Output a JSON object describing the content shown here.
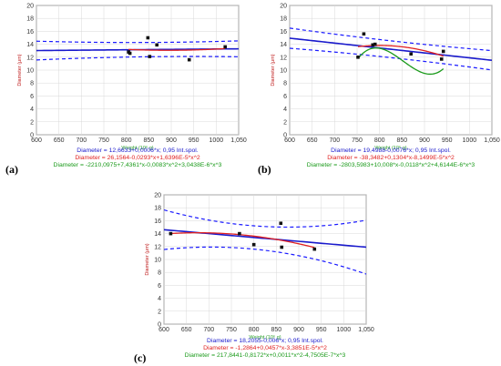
{
  "colors": {
    "ci": "#1a1aff",
    "linear": "#1a1acc",
    "quadratic": "#e02020",
    "cubic": "#1a9a1a",
    "points": "#111111",
    "xlabel": "#2aa02a",
    "ylabel": "#c02020"
  },
  "chart_data": [
    {
      "panel_label": "(a)",
      "type": "scatter",
      "xlabel": "Weight (10⁶ g)",
      "ylabel": "Diameter (μm)",
      "xlim": [
        600,
        1050
      ],
      "ylim": [
        0,
        20
      ],
      "xticks": [
        "600",
        "650",
        "700",
        "750",
        "800",
        "850",
        "900",
        "950",
        "1000",
        "1,050"
      ],
      "yticks": [
        "0",
        "2",
        "4",
        "6",
        "8",
        "10",
        "12",
        "14",
        "16",
        "18",
        "20"
      ],
      "points": [
        [
          805,
          12.8
        ],
        [
          808,
          12.6
        ],
        [
          848,
          15.0
        ],
        [
          852,
          12.1
        ],
        [
          868,
          13.9
        ],
        [
          940,
          11.6
        ],
        [
          1020,
          13.6
        ]
      ],
      "equations": [
        {
          "text": "Diameter = 12,6633+0,0006*x; 0,95 Int.spol.",
          "color": "linear"
        },
        {
          "text": "Diameter = 26,1564-0,0293*x+1,6396E-5*x^2",
          "color": "quadratic"
        },
        {
          "text": "Diameter = -2210,0975+7,4361*x-0,0083*x^2+3,0438E-6*x^3",
          "color": "cubic"
        }
      ],
      "series": [
        {
          "kind": "linear",
          "coef": [
            12.6633,
            0.0006
          ],
          "xrange": [
            600,
            1050
          ],
          "dashed": false
        },
        {
          "kind": "ci_upper",
          "coef": [
            12.6633,
            0.0006
          ],
          "center": 880,
          "half_width_min": 1.1,
          "curv": 4.5e-06,
          "xrange": [
            600,
            1050
          ],
          "dashed": true
        },
        {
          "kind": "ci_lower",
          "coef": [
            12.6633,
            0.0006
          ],
          "center": 880,
          "half_width_min": 1.1,
          "curv": 4.5e-06,
          "xrange": [
            600,
            1050
          ],
          "dashed": true
        },
        {
          "kind": "quadratic",
          "coef": [
            26.1564,
            -0.0293,
            1.6396e-05
          ],
          "xrange": [
            805,
            1020
          ],
          "dashed": false
        },
        {
          "kind": "cubic",
          "coef": [
            -2210.0975,
            7.4361,
            -0.0083,
            3.0438e-06
          ],
          "xrange": [
            805,
            1020
          ],
          "dashed": false
        }
      ]
    },
    {
      "panel_label": "(b)",
      "type": "scatter",
      "xlabel": "Weight (10⁶ g)",
      "ylabel": "Diameter (μm)",
      "xlim": [
        600,
        1050
      ],
      "ylim": [
        0,
        20
      ],
      "xticks": [
        "600",
        "650",
        "700",
        "750",
        "800",
        "850",
        "900",
        "950",
        "1000",
        "1,050"
      ],
      "yticks": [
        "0",
        "2",
        "4",
        "6",
        "8",
        "10",
        "12",
        "14",
        "16",
        "18",
        "20"
      ],
      "points": [
        [
          752,
          12.0
        ],
        [
          765,
          15.6
        ],
        [
          785,
          13.9
        ],
        [
          790,
          14.0
        ],
        [
          870,
          12.5
        ],
        [
          938,
          11.7
        ],
        [
          942,
          12.9
        ]
      ],
      "equations": [
        {
          "text": "Diameter = 19,4988-0,0076*x; 0,95 Int.spol.",
          "color": "linear"
        },
        {
          "text": "Diameter = -38,3482+0,1304*x-8,1499E-5*x^2",
          "color": "quadratic"
        },
        {
          "text": "Diameter = -2803,5983+10,008*x-0,0118*x^2+4,6144E-6*x^3",
          "color": "cubic"
        }
      ],
      "series": [
        {
          "kind": "linear",
          "coef": [
            19.4988,
            -0.0076
          ],
          "xrange": [
            600,
            1050
          ],
          "dashed": false
        },
        {
          "kind": "ci_upper",
          "coef": [
            19.4988,
            -0.0076
          ],
          "center": 840,
          "half_width_min": 1.3,
          "curv": 4.5e-06,
          "xrange": [
            600,
            1050
          ],
          "dashed": true
        },
        {
          "kind": "ci_lower",
          "coef": [
            19.4988,
            -0.0076
          ],
          "center": 840,
          "half_width_min": 1.3,
          "curv": 4.5e-06,
          "xrange": [
            600,
            1050
          ],
          "dashed": true
        },
        {
          "kind": "quadratic",
          "coef": [
            -38.3482,
            0.1304,
            -8.1499e-05
          ],
          "xrange": [
            752,
            942
          ],
          "dashed": false
        },
        {
          "kind": "cubic",
          "coef": [
            -2803.5983,
            10.008,
            -0.0118,
            4.6144e-06
          ],
          "xrange": [
            752,
            942
          ],
          "dashed": false
        }
      ]
    },
    {
      "panel_label": "(c)",
      "type": "scatter",
      "xlabel": "Weight (10⁶ g)",
      "ylabel": "Diameter (μm)",
      "xlim": [
        600,
        1050
      ],
      "ylim": [
        0,
        20
      ],
      "xticks": [
        "600",
        "650",
        "700",
        "750",
        "800",
        "850",
        "900",
        "950",
        "1000",
        "1,050"
      ],
      "yticks": [
        "0",
        "2",
        "4",
        "6",
        "8",
        "10",
        "12",
        "14",
        "16",
        "18",
        "20"
      ],
      "points": [
        [
          615,
          14.0
        ],
        [
          768,
          14.0
        ],
        [
          800,
          12.3
        ],
        [
          860,
          15.6
        ],
        [
          862,
          11.9
        ],
        [
          935,
          11.6
        ]
      ],
      "equations": [
        {
          "text": "Diameter = 18,2055-0,006*x; 0,95 Int.spol.",
          "color": "linear"
        },
        {
          "text": "Diameter = -1,2864+0,0457*x-3,3851E-5*x^2",
          "color": "quadratic"
        },
        {
          "text": "Diameter = 217,8441-0,8172*x+0,0011*x^2-4,7505E-7*x^3",
          "color": "cubic"
        }
      ],
      "series": [
        {
          "kind": "linear",
          "coef": [
            18.2055,
            -0.006
          ],
          "xrange": [
            600,
            1050
          ],
          "dashed": false
        },
        {
          "kind": "ci_upper",
          "coef": [
            18.2055,
            -0.006
          ],
          "center": 790,
          "half_width_min": 1.8,
          "curv": 3.5e-05,
          "xrange": [
            600,
            1050
          ],
          "dashed": true
        },
        {
          "kind": "ci_lower",
          "coef": [
            18.2055,
            -0.006
          ],
          "center": 790,
          "half_width_min": 1.8,
          "curv": 3.5e-05,
          "xrange": [
            600,
            1050
          ],
          "dashed": true
        },
        {
          "kind": "quadratic",
          "coef": [
            -1.2864,
            0.0457,
            -3.3851e-05
          ],
          "xrange": [
            615,
            935
          ],
          "dashed": false
        },
        {
          "kind": "cubic",
          "coef": [
            217.8441,
            -0.8172,
            0.0011,
            -4.7505e-07
          ],
          "xrange": [
            615,
            935
          ],
          "dashed": false
        }
      ]
    }
  ]
}
